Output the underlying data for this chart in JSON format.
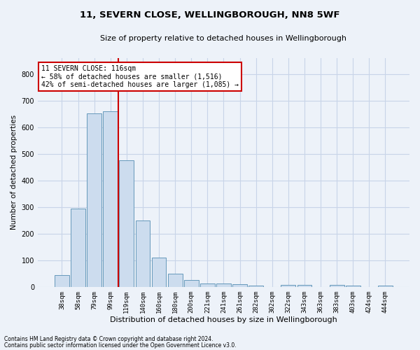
{
  "title_line1": "11, SEVERN CLOSE, WELLINGBOROUGH, NN8 5WF",
  "title_line2": "Size of property relative to detached houses in Wellingborough",
  "xlabel": "Distribution of detached houses by size in Wellingborough",
  "ylabel": "Number of detached properties",
  "bar_labels": [
    "38sqm",
    "58sqm",
    "79sqm",
    "99sqm",
    "119sqm",
    "140sqm",
    "160sqm",
    "180sqm",
    "200sqm",
    "221sqm",
    "241sqm",
    "261sqm",
    "282sqm",
    "302sqm",
    "322sqm",
    "343sqm",
    "363sqm",
    "383sqm",
    "403sqm",
    "424sqm",
    "444sqm"
  ],
  "bar_values": [
    45,
    293,
    652,
    660,
    475,
    250,
    110,
    50,
    25,
    14,
    14,
    10,
    6,
    0,
    8,
    7,
    0,
    8,
    5,
    0,
    5
  ],
  "bar_color": "#ccdcee",
  "bar_edge_color": "#6699bb",
  "property_line_x": 3.5,
  "property_line_color": "#cc0000",
  "annotation_text": "11 SEVERN CLOSE: 116sqm\n← 58% of detached houses are smaller (1,516)\n42% of semi-detached houses are larger (1,085) →",
  "annotation_box_facecolor": "#ffffff",
  "annotation_box_edgecolor": "#cc0000",
  "ylim": [
    0,
    860
  ],
  "yticks": [
    0,
    100,
    200,
    300,
    400,
    500,
    600,
    700,
    800
  ],
  "footnote_line1": "Contains HM Land Registry data © Crown copyright and database right 2024.",
  "footnote_line2": "Contains public sector information licensed under the Open Government Licence v3.0.",
  "grid_color": "#c8d4e8",
  "background_color": "#edf2f9",
  "title1_fontsize": 9.5,
  "title2_fontsize": 8,
  "xlabel_fontsize": 8,
  "ylabel_fontsize": 7.5,
  "tick_fontsize": 6.5,
  "annotation_fontsize": 7,
  "footnote_fontsize": 5.5
}
